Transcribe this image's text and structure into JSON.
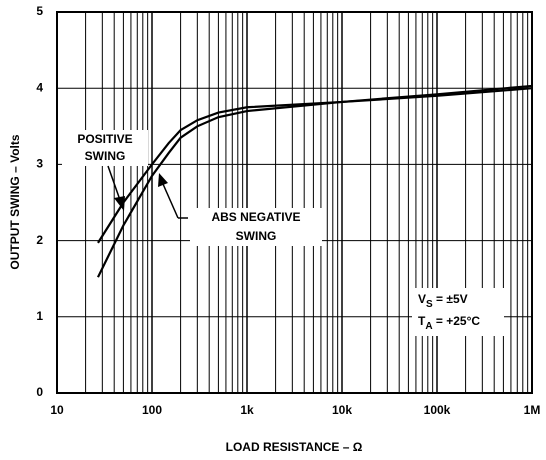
{
  "chart_data": {
    "type": "line",
    "xlabel": "LOAD RESISTANCE – Ω",
    "ylabel": "OUTPUT SWING – Volts",
    "x": [
      27,
      50,
      100,
      150,
      200,
      300,
      500,
      1000,
      10000,
      100000,
      1000000
    ],
    "series": [
      {
        "name": "POSITIVE SWING",
        "color": "#000000",
        "values": [
          1.97,
          2.5,
          3.0,
          3.28,
          3.45,
          3.58,
          3.68,
          3.75,
          3.82,
          3.92,
          4.03
        ]
      },
      {
        "name": "ABS NEGATIVE SWING",
        "color": "#000000",
        "values": [
          1.52,
          2.2,
          2.85,
          3.15,
          3.35,
          3.5,
          3.62,
          3.7,
          3.82,
          3.9,
          4.0
        ]
      }
    ],
    "annotations": [
      [
        "POSITIVE",
        "SWING"
      ],
      [
        "ABS NEGATIVE",
        "SWING"
      ]
    ],
    "conditions": [
      [
        "V",
        "S",
        " = ±5V"
      ],
      [
        "T",
        "A",
        " = +25°C"
      ]
    ],
    "xlog": true,
    "grid": true,
    "xlim": [
      10,
      1000000
    ],
    "xticks": [
      10,
      100,
      {
        "value": 1000,
        "label": "1k"
      },
      {
        "value": 10000,
        "label": "10k"
      },
      {
        "value": 100000,
        "label": "100k"
      },
      {
        "value": 1000000,
        "label": "1M"
      }
    ],
    "ylim": [
      0,
      5
    ],
    "yticks": [
      0,
      1,
      2,
      3,
      4,
      5
    ]
  }
}
